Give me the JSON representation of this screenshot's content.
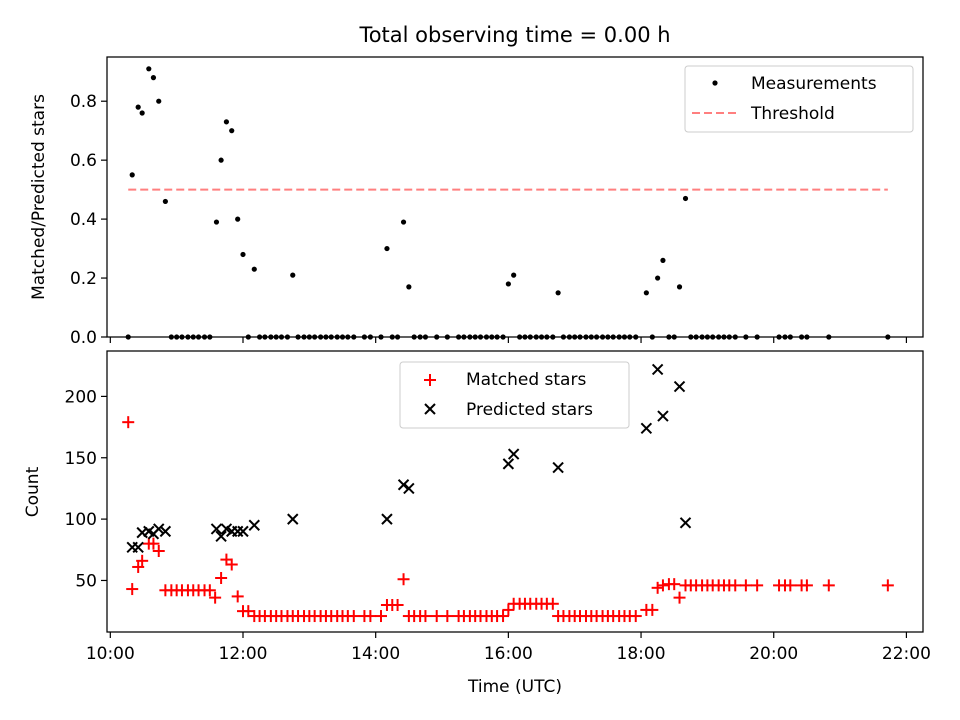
{
  "figure": {
    "title": "Total observing time = 0.00 h",
    "xlabel": "Time (UTC)"
  },
  "chart_data": [
    {
      "type": "scatter",
      "ylabel": "Matched/Predicted stars",
      "xlim": [
        9.95,
        22.25
      ],
      "ylim": [
        0,
        0.95
      ],
      "yticks": [
        0.0,
        0.2,
        0.4,
        0.6,
        0.8
      ],
      "ytick_labels": [
        "0.0",
        "0.2",
        "0.4",
        "0.6",
        "0.8"
      ],
      "xticks": [
        10,
        12,
        14,
        16,
        18,
        20,
        22
      ],
      "legend_position": "upper right",
      "series": [
        {
          "name": "Measurements",
          "marker": "dot",
          "color": "#000000",
          "points": [
            [
              10.27,
              0
            ],
            [
              10.33,
              0.55
            ],
            [
              10.42,
              0.78
            ],
            [
              10.48,
              0.76
            ],
            [
              10.58,
              0.91
            ],
            [
              10.65,
              0.88
            ],
            [
              10.73,
              0.8
            ],
            [
              10.83,
              0.46
            ],
            [
              10.92,
              0
            ],
            [
              11.0,
              0
            ],
            [
              11.08,
              0
            ],
            [
              11.17,
              0
            ],
            [
              11.25,
              0
            ],
            [
              11.33,
              0
            ],
            [
              11.42,
              0
            ],
            [
              11.5,
              0
            ],
            [
              11.6,
              0.39
            ],
            [
              11.67,
              0.6
            ],
            [
              11.75,
              0.73
            ],
            [
              11.83,
              0.7
            ],
            [
              11.92,
              0.4
            ],
            [
              12.0,
              0.28
            ],
            [
              12.08,
              0
            ],
            [
              12.17,
              0.23
            ],
            [
              12.25,
              0
            ],
            [
              12.33,
              0
            ],
            [
              12.42,
              0
            ],
            [
              12.5,
              0
            ],
            [
              12.58,
              0
            ],
            [
              12.67,
              0
            ],
            [
              12.75,
              0.21
            ],
            [
              12.83,
              0
            ],
            [
              12.92,
              0
            ],
            [
              13.0,
              0
            ],
            [
              13.08,
              0
            ],
            [
              13.17,
              0
            ],
            [
              13.25,
              0
            ],
            [
              13.33,
              0
            ],
            [
              13.42,
              0
            ],
            [
              13.5,
              0
            ],
            [
              13.58,
              0
            ],
            [
              13.67,
              0
            ],
            [
              13.83,
              0
            ],
            [
              13.92,
              0
            ],
            [
              14.08,
              0
            ],
            [
              14.17,
              0.3
            ],
            [
              14.25,
              0
            ],
            [
              14.33,
              0
            ],
            [
              14.42,
              0.39
            ],
            [
              14.5,
              0.17
            ],
            [
              14.58,
              0
            ],
            [
              14.67,
              0
            ],
            [
              14.75,
              0
            ],
            [
              14.92,
              0
            ],
            [
              15.08,
              0
            ],
            [
              15.25,
              0
            ],
            [
              15.33,
              0
            ],
            [
              15.42,
              0
            ],
            [
              15.5,
              0
            ],
            [
              15.58,
              0
            ],
            [
              15.67,
              0
            ],
            [
              15.75,
              0
            ],
            [
              15.83,
              0
            ],
            [
              15.92,
              0
            ],
            [
              16.0,
              0.18
            ],
            [
              16.08,
              0.21
            ],
            [
              16.17,
              0
            ],
            [
              16.25,
              0
            ],
            [
              16.33,
              0
            ],
            [
              16.42,
              0
            ],
            [
              16.5,
              0
            ],
            [
              16.58,
              0
            ],
            [
              16.67,
              0
            ],
            [
              16.75,
              0.15
            ],
            [
              16.83,
              0
            ],
            [
              16.92,
              0
            ],
            [
              17.0,
              0
            ],
            [
              17.08,
              0
            ],
            [
              17.17,
              0
            ],
            [
              17.25,
              0
            ],
            [
              17.33,
              0
            ],
            [
              17.42,
              0
            ],
            [
              17.5,
              0
            ],
            [
              17.58,
              0
            ],
            [
              17.67,
              0
            ],
            [
              17.75,
              0
            ],
            [
              17.83,
              0
            ],
            [
              17.92,
              0
            ],
            [
              18.08,
              0.15
            ],
            [
              18.17,
              0
            ],
            [
              18.25,
              0.2
            ],
            [
              18.33,
              0.26
            ],
            [
              18.42,
              0
            ],
            [
              18.5,
              0
            ],
            [
              18.58,
              0.17
            ],
            [
              18.67,
              0.47
            ],
            [
              18.75,
              0
            ],
            [
              18.83,
              0
            ],
            [
              18.92,
              0
            ],
            [
              19.0,
              0
            ],
            [
              19.08,
              0
            ],
            [
              19.17,
              0
            ],
            [
              19.25,
              0
            ],
            [
              19.33,
              0
            ],
            [
              19.42,
              0
            ],
            [
              19.58,
              0
            ],
            [
              19.75,
              0
            ],
            [
              20.08,
              0
            ],
            [
              20.17,
              0
            ],
            [
              20.25,
              0
            ],
            [
              20.42,
              0
            ],
            [
              20.5,
              0
            ],
            [
              20.83,
              0
            ],
            [
              21.72,
              0
            ]
          ]
        },
        {
          "name": "Threshold",
          "marker": "dashed-line",
          "color": "#ff7f7f",
          "points": [
            [
              10.27,
              0.5
            ],
            [
              21.72,
              0.5
            ]
          ]
        }
      ]
    },
    {
      "type": "scatter",
      "ylabel": "Count",
      "xlabel": "Time (UTC)",
      "xlim": [
        9.95,
        22.25
      ],
      "ylim": [
        8,
        237
      ],
      "yticks": [
        50,
        100,
        150,
        200
      ],
      "ytick_labels": [
        "50",
        "100",
        "150",
        "200"
      ],
      "xticks": [
        10,
        12,
        14,
        16,
        18,
        20,
        22
      ],
      "xtick_labels": [
        "10:00",
        "12:00",
        "14:00",
        "16:00",
        "18:00",
        "20:00",
        "22:00"
      ],
      "legend_position": "upper center",
      "series": [
        {
          "name": "Matched stars",
          "marker": "plus",
          "color": "#ff0000",
          "points": [
            [
              10.27,
              179
            ],
            [
              10.33,
              43
            ],
            [
              10.42,
              61
            ],
            [
              10.48,
              66
            ],
            [
              10.58,
              80
            ],
            [
              10.65,
              80
            ],
            [
              10.73,
              74
            ],
            [
              10.83,
              42
            ],
            [
              10.92,
              42
            ],
            [
              11.0,
              42
            ],
            [
              11.08,
              42
            ],
            [
              11.17,
              42
            ],
            [
              11.25,
              42
            ],
            [
              11.33,
              42
            ],
            [
              11.42,
              42
            ],
            [
              11.5,
              42
            ],
            [
              11.58,
              36
            ],
            [
              11.67,
              52
            ],
            [
              11.75,
              67
            ],
            [
              11.83,
              63
            ],
            [
              11.92,
              37
            ],
            [
              12.0,
              25
            ],
            [
              12.08,
              25
            ],
            [
              12.17,
              21
            ],
            [
              12.25,
              21
            ],
            [
              12.33,
              21
            ],
            [
              12.42,
              21
            ],
            [
              12.5,
              21
            ],
            [
              12.58,
              21
            ],
            [
              12.67,
              21
            ],
            [
              12.75,
              21
            ],
            [
              12.83,
              21
            ],
            [
              12.92,
              21
            ],
            [
              13.0,
              21
            ],
            [
              13.08,
              21
            ],
            [
              13.17,
              21
            ],
            [
              13.25,
              21
            ],
            [
              13.33,
              21
            ],
            [
              13.42,
              21
            ],
            [
              13.5,
              21
            ],
            [
              13.58,
              21
            ],
            [
              13.67,
              21
            ],
            [
              13.83,
              21
            ],
            [
              13.92,
              21
            ],
            [
              14.08,
              21
            ],
            [
              14.17,
              30
            ],
            [
              14.25,
              30
            ],
            [
              14.33,
              30
            ],
            [
              14.42,
              51
            ],
            [
              14.5,
              21
            ],
            [
              14.58,
              21
            ],
            [
              14.67,
              21
            ],
            [
              14.75,
              21
            ],
            [
              14.92,
              21
            ],
            [
              15.08,
              21
            ],
            [
              15.25,
              21
            ],
            [
              15.33,
              21
            ],
            [
              15.42,
              21
            ],
            [
              15.5,
              21
            ],
            [
              15.58,
              21
            ],
            [
              15.67,
              21
            ],
            [
              15.75,
              21
            ],
            [
              15.83,
              21
            ],
            [
              15.92,
              21
            ],
            [
              16.0,
              26
            ],
            [
              16.08,
              31
            ],
            [
              16.17,
              31
            ],
            [
              16.25,
              31
            ],
            [
              16.33,
              31
            ],
            [
              16.42,
              31
            ],
            [
              16.5,
              31
            ],
            [
              16.58,
              31
            ],
            [
              16.67,
              31
            ],
            [
              16.75,
              21
            ],
            [
              16.83,
              21
            ],
            [
              16.92,
              21
            ],
            [
              17.0,
              21
            ],
            [
              17.08,
              21
            ],
            [
              17.17,
              21
            ],
            [
              17.25,
              21
            ],
            [
              17.33,
              21
            ],
            [
              17.42,
              21
            ],
            [
              17.5,
              21
            ],
            [
              17.58,
              21
            ],
            [
              17.67,
              21
            ],
            [
              17.75,
              21
            ],
            [
              17.83,
              21
            ],
            [
              17.92,
              21
            ],
            [
              18.08,
              26
            ],
            [
              18.17,
              26
            ],
            [
              18.25,
              44
            ],
            [
              18.33,
              46
            ],
            [
              18.42,
              47
            ],
            [
              18.5,
              47
            ],
            [
              18.58,
              36
            ],
            [
              18.67,
              46
            ],
            [
              18.75,
              46
            ],
            [
              18.83,
              46
            ],
            [
              18.92,
              46
            ],
            [
              19.0,
              46
            ],
            [
              19.08,
              46
            ],
            [
              19.17,
              46
            ],
            [
              19.25,
              46
            ],
            [
              19.33,
              46
            ],
            [
              19.42,
              46
            ],
            [
              19.58,
              46
            ],
            [
              19.75,
              46
            ],
            [
              20.08,
              46
            ],
            [
              20.17,
              46
            ],
            [
              20.25,
              46
            ],
            [
              20.42,
              46
            ],
            [
              20.5,
              46
            ],
            [
              20.83,
              46
            ],
            [
              21.72,
              46
            ]
          ]
        },
        {
          "name": "Predicted stars",
          "marker": "x",
          "color": "#000000",
          "points": [
            [
              10.33,
              77
            ],
            [
              10.42,
              77
            ],
            [
              10.48,
              89
            ],
            [
              10.58,
              90
            ],
            [
              10.65,
              88
            ],
            [
              10.73,
              92
            ],
            [
              10.83,
              90
            ],
            [
              11.6,
              92
            ],
            [
              11.67,
              86
            ],
            [
              11.75,
              92
            ],
            [
              11.83,
              90
            ],
            [
              11.92,
              90
            ],
            [
              12.0,
              90
            ],
            [
              12.17,
              95
            ],
            [
              12.75,
              100
            ],
            [
              14.17,
              100
            ],
            [
              14.42,
              128
            ],
            [
              14.5,
              125
            ],
            [
              16.0,
              145
            ],
            [
              16.08,
              153
            ],
            [
              16.75,
              142
            ],
            [
              18.08,
              174
            ],
            [
              18.25,
              222
            ],
            [
              18.33,
              184
            ],
            [
              18.58,
              208
            ],
            [
              18.67,
              97
            ]
          ]
        }
      ]
    }
  ]
}
